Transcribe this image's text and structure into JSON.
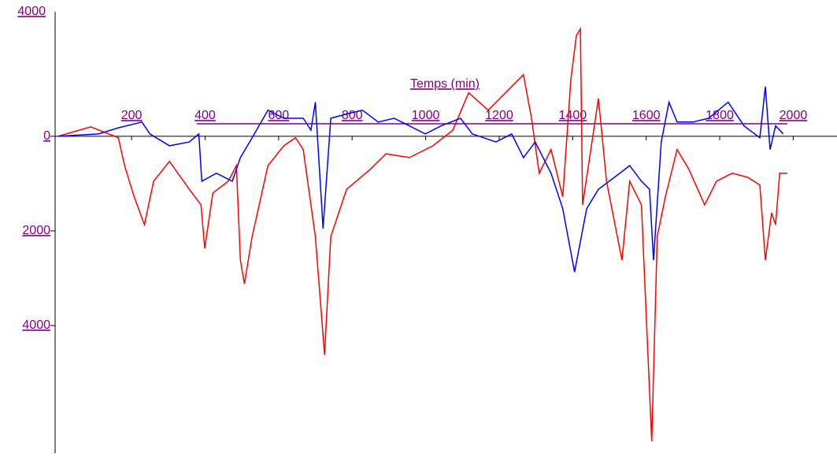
{
  "chart_data": {
    "type": "line",
    "x_label": "Temps (min)",
    "y_top_label": "4000",
    "xlim": [
      -8,
      2119
    ],
    "ylim": [
      -6700,
      2630
    ],
    "xticks": [
      200,
      400,
      600,
      800,
      1000,
      1200,
      1400,
      1600,
      1800,
      2000
    ],
    "yticks": [
      0,
      {
        "value": -2000,
        "label": "2000"
      },
      {
        "value": -4000,
        "label": "4000"
      }
    ],
    "series": [
      {
        "color": "#ff0000",
        "x": [
          0,
          89,
          164,
          181,
          207,
          235,
          260,
          303,
          357,
          389,
          399,
          421,
          463,
          485,
          496,
          507,
          528,
          571,
          614,
          646,
          667,
          700,
          725,
          742,
          785,
          849,
          892,
          956,
          1020,
          1074,
          1117,
          1170,
          1234,
          1266,
          1288,
          1309,
          1341,
          1373,
          1395,
          1410,
          1421,
          1427,
          1470,
          1492,
          1534,
          1555,
          1587,
          1615,
          1630,
          1652,
          1684,
          1716,
          1759,
          1791,
          1834,
          1877,
          1909,
          1924,
          1941,
          1952,
          1963,
          1984
        ],
        "values": [
          0,
          200,
          -30,
          -620,
          -1280,
          -1870,
          -950,
          -530,
          -1120,
          -1450,
          -2370,
          -1200,
          -950,
          -620,
          -2620,
          -3120,
          -2120,
          -620,
          -200,
          -30,
          -280,
          -2120,
          -4620,
          -2120,
          -1120,
          -700,
          -370,
          -450,
          -200,
          130,
          920,
          550,
          1050,
          1300,
          380,
          -780,
          -280,
          -1280,
          1200,
          2130,
          2270,
          -1450,
          800,
          -950,
          -2620,
          -950,
          -1450,
          -6450,
          -2120,
          -1280,
          -280,
          -700,
          -1450,
          -950,
          -780,
          -870,
          -1030,
          -2620,
          -1620,
          -1870,
          -780,
          -780
        ]
      },
      {
        "color": "#0000ff",
        "x": [
          0,
          110,
          164,
          228,
          250,
          303,
          357,
          383,
          391,
          431,
          474,
          496,
          528,
          571,
          614,
          667,
          688,
          700,
          721,
          742,
          785,
          828,
          871,
          914,
          956,
          999,
          1042,
          1095,
          1127,
          1191,
          1234,
          1266,
          1298,
          1341,
          1373,
          1405,
          1438,
          1470,
          1513,
          1555,
          1587,
          1609,
          1620,
          1641,
          1662,
          1684,
          1727,
          1770,
          1823,
          1866,
          1909,
          1924,
          1937,
          1952,
          1973
        ],
        "values": [
          0,
          50,
          180,
          300,
          50,
          -200,
          -120,
          50,
          -950,
          -780,
          -950,
          -450,
          -30,
          550,
          380,
          380,
          130,
          720,
          -1950,
          380,
          470,
          550,
          300,
          380,
          220,
          50,
          220,
          380,
          50,
          -120,
          50,
          -450,
          -120,
          -780,
          -1530,
          -2870,
          -1530,
          -1120,
          -870,
          -620,
          -950,
          -1120,
          -2620,
          -120,
          720,
          300,
          300,
          380,
          720,
          220,
          -30,
          1050,
          -280,
          220,
          50
        ]
      }
    ]
  }
}
